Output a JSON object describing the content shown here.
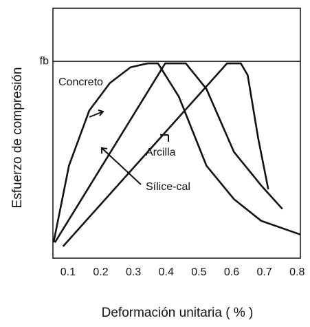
{
  "chart_data": {
    "type": "line",
    "xlabel": "Deformación unitaria ( % )",
    "ylabel": "Esfuerzo de compresión",
    "xlim": [
      0.054,
      0.81
    ],
    "xticks": [
      0.1,
      0.2,
      0.3,
      0.4,
      0.5,
      0.6,
      0.7,
      0.8
    ],
    "ylim": [
      0,
      1.27
    ],
    "yticks": [
      {
        "value": 1,
        "label": "fb"
      }
    ],
    "series": [
      {
        "name": "Concreto",
        "color": "#111111",
        "x": [
          0.056,
          0.103,
          0.165,
          0.228,
          0.291,
          0.344,
          0.375,
          0.439,
          0.523,
          0.607,
          0.69,
          0.81
        ],
        "values": [
          0.08,
          0.47,
          0.75,
          0.89,
          0.97,
          0.99,
          0.99,
          0.82,
          0.47,
          0.3,
          0.19,
          0.12
        ]
      },
      {
        "name": "Arcilla",
        "color": "#111111",
        "x": [
          0.06,
          0.397,
          0.46,
          0.523,
          0.607,
          0.69,
          0.755
        ],
        "values": [
          0.08,
          0.99,
          0.99,
          0.86,
          0.54,
          0.37,
          0.25
        ]
      },
      {
        "name": "Sílice-cal",
        "color": "#111111",
        "x": [
          0.085,
          0.586,
          0.628,
          0.649,
          0.681,
          0.712
        ],
        "values": [
          0.06,
          0.99,
          0.99,
          0.93,
          0.61,
          0.35
        ]
      }
    ]
  }
}
